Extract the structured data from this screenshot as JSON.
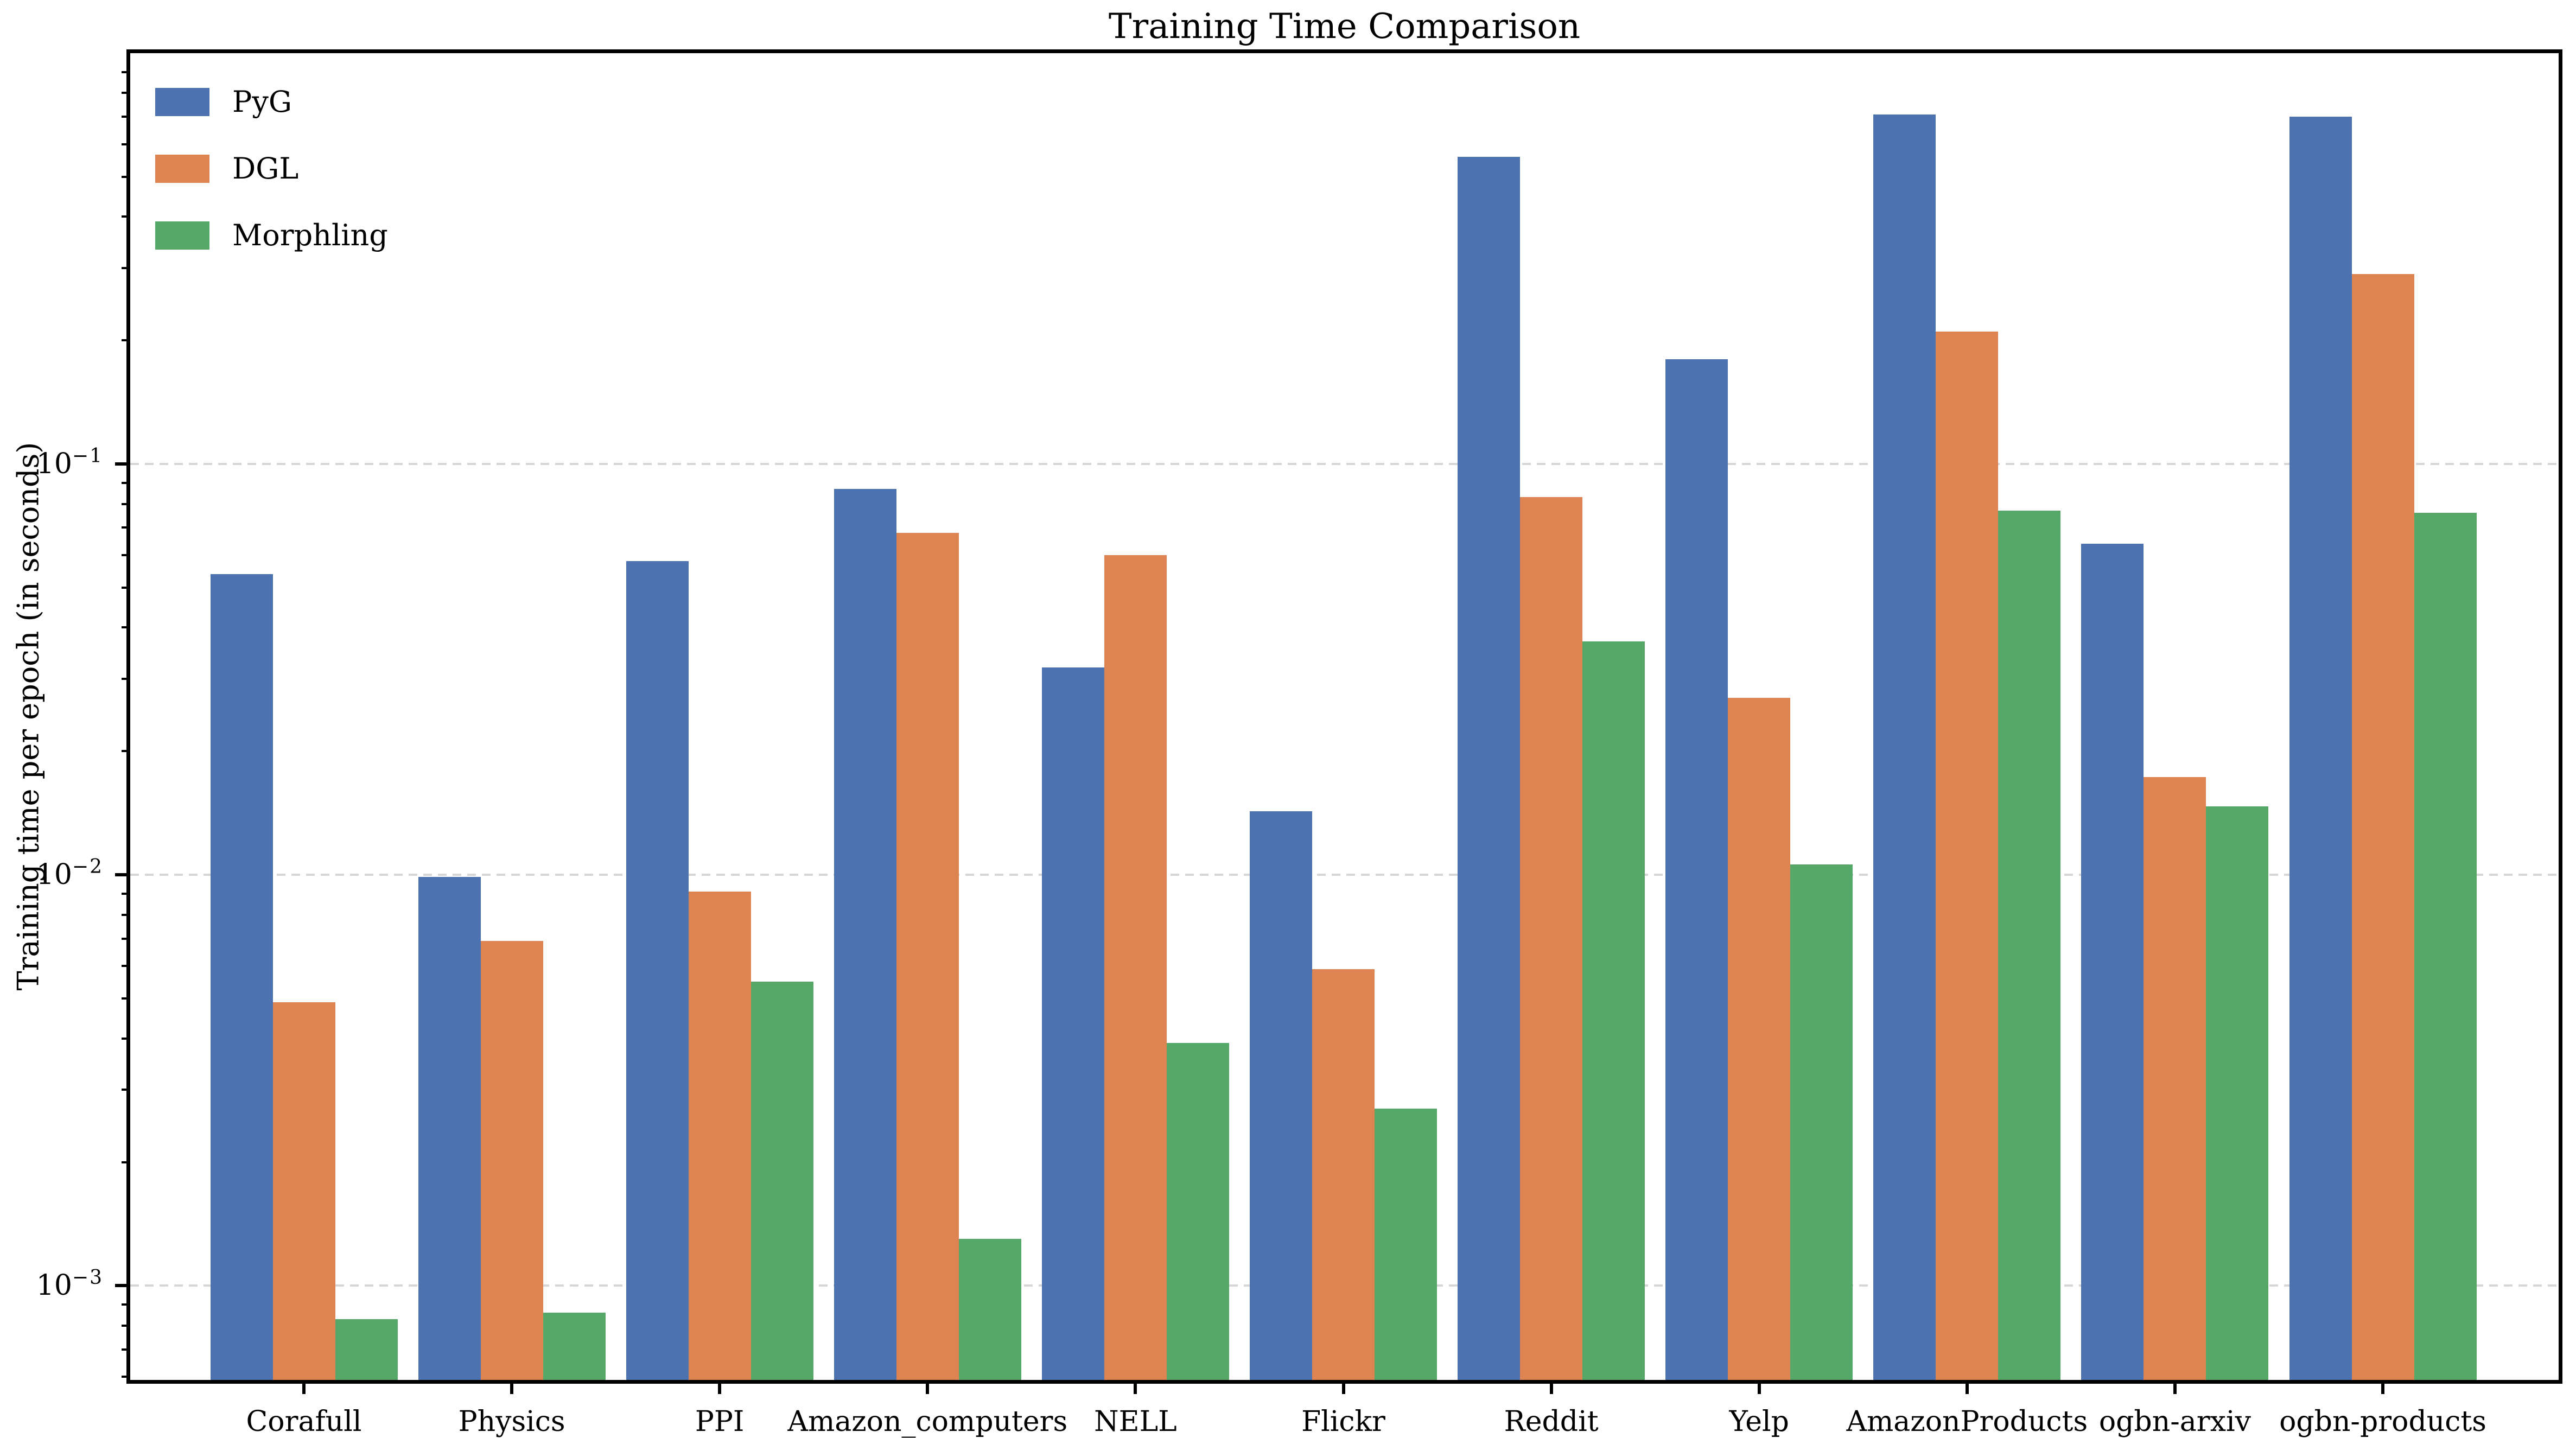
{
  "chart_data": {
    "type": "bar",
    "title": "Training Time Comparison",
    "xlabel": "",
    "ylabel": "Training time per epoch (in seconds)",
    "yscale": "log",
    "ylim": [
      0.00059,
      1.0
    ],
    "grid": "dashed horizontal gridlines at major y ticks",
    "legend": {
      "position": "upper-left"
    },
    "yticks": [
      {
        "value": 0.1,
        "base": "10",
        "exp": "−1"
      },
      {
        "value": 0.01,
        "base": "10",
        "exp": "−2"
      },
      {
        "value": 0.001,
        "base": "10",
        "exp": "−3"
      }
    ],
    "categories": [
      "Corafull",
      "Physics",
      "PPI",
      "Amazon_computers",
      "NELL",
      "Flickr",
      "Reddit",
      "Yelp",
      "AmazonProducts",
      "ogbn-arxiv",
      "ogbn-products"
    ],
    "series": [
      {
        "name": "PyG",
        "color": "#4C72B0",
        "values": [
          0.054,
          0.0099,
          0.058,
          0.087,
          0.032,
          0.0143,
          0.56,
          0.18,
          0.71,
          0.064,
          0.7
        ]
      },
      {
        "name": "DGL",
        "color": "#DD8452",
        "values": [
          0.0049,
          0.0069,
          0.0091,
          0.068,
          0.06,
          0.0059,
          0.083,
          0.027,
          0.21,
          0.0173,
          0.29
        ]
      },
      {
        "name": "Morphling",
        "color": "#55A868",
        "values": [
          0.00083,
          0.00086,
          0.0055,
          0.0013,
          0.0039,
          0.0027,
          0.037,
          0.0106,
          0.077,
          0.0147,
          0.076
        ]
      }
    ]
  }
}
